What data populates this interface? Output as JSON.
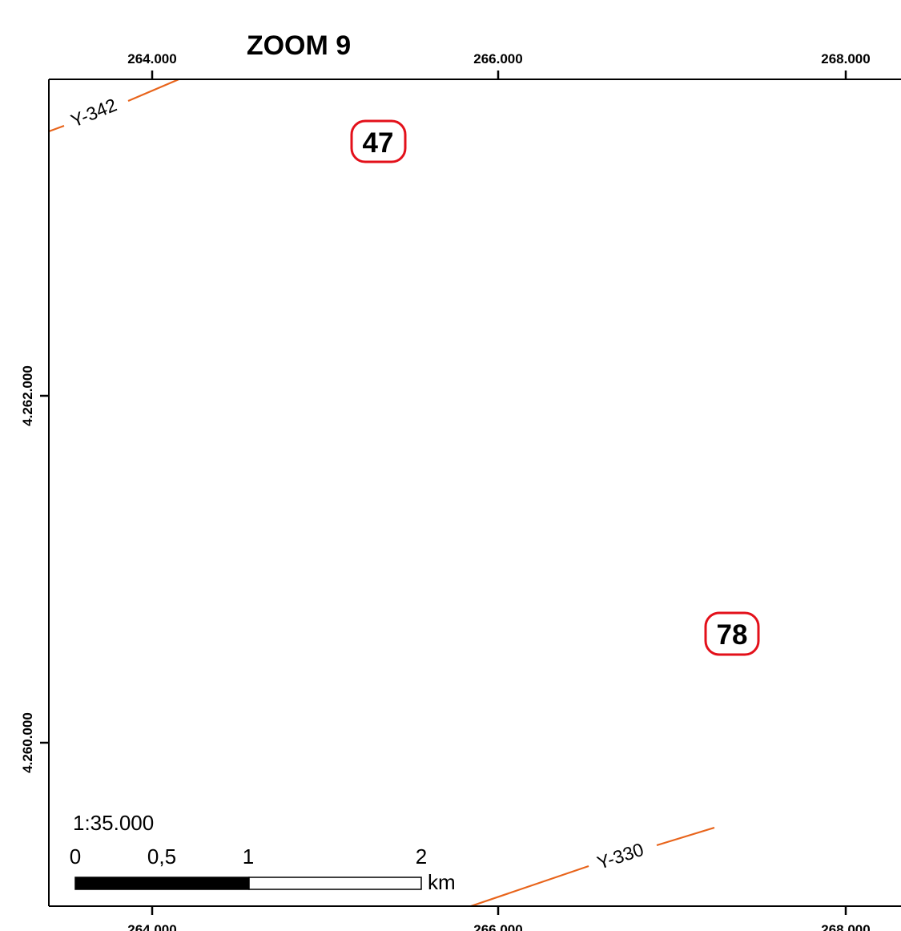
{
  "map": {
    "title": "ZOOM 9",
    "x_ticks": [
      {
        "value": 264000,
        "label": "264.000"
      },
      {
        "value": 266000,
        "label": "266.000"
      },
      {
        "value": 268000,
        "label": "268.000"
      }
    ],
    "y_ticks": [
      {
        "value": 4262000,
        "label": "4.262.000"
      },
      {
        "value": 4260000,
        "label": "4.260.000"
      }
    ],
    "roads": [
      {
        "label": "Y-342",
        "color": "#e8641b"
      },
      {
        "label": "Y-330",
        "color": "#e8641b"
      }
    ],
    "points": [
      {
        "label": "47",
        "halo_color": "#e3101a"
      },
      {
        "label": "78",
        "halo_color": "#e3101a"
      }
    ],
    "scale_bar": {
      "ratio": "1:35.000",
      "labels": [
        "0",
        "0,5",
        "1",
        "2"
      ],
      "unit": "km"
    }
  }
}
